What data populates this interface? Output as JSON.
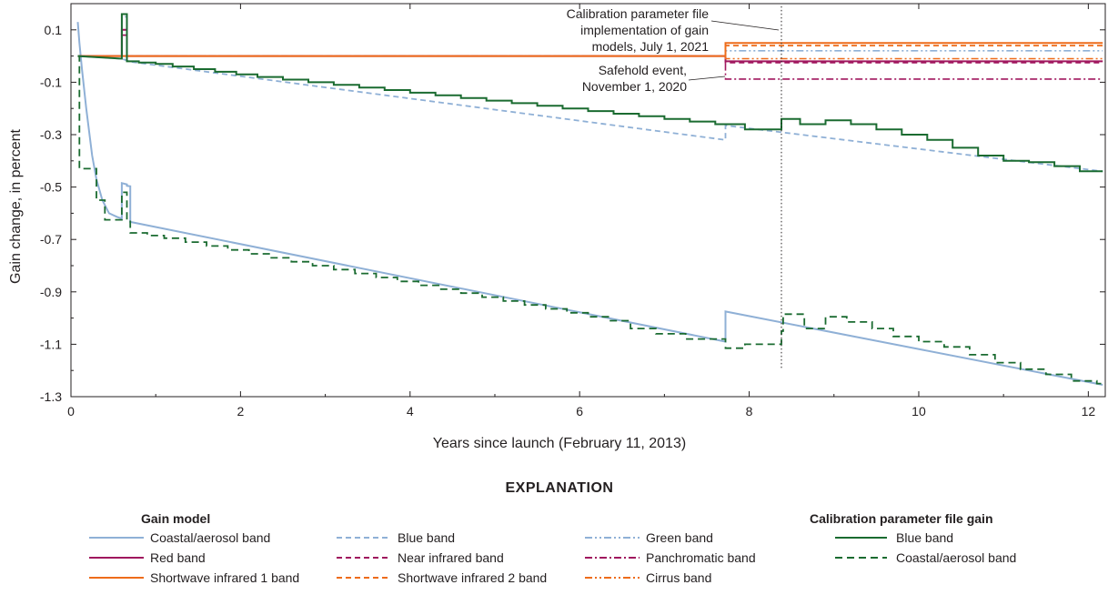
{
  "chart_data": {
    "type": "line",
    "xlabel": "Years since launch (February 11, 2013)",
    "ylabel": "Gain change, in percent",
    "xlim": [
      0,
      12.2
    ],
    "ylim": [
      -1.3,
      0.2
    ],
    "x_ticks": [
      0,
      2,
      4,
      6,
      8,
      10,
      12
    ],
    "x_tick_labels": [
      "0",
      "2",
      "4",
      "6",
      "8",
      "10",
      "12"
    ],
    "y_ticks": [
      0.1,
      -0.1,
      -0.3,
      -0.5,
      -0.7,
      -0.9,
      -1.1,
      -1.3
    ],
    "y_tick_labels": [
      "0.1",
      "-0.1",
      "-0.3",
      "-0.5",
      "-0.7",
      "-0.9",
      "-1.1",
      "-1.3"
    ],
    "annotations": [
      {
        "lines": [
          "Calibration parameter file",
          "implementation of gain",
          "models, July 1, 2021"
        ],
        "x": 8.38,
        "y": 0.1
      },
      {
        "lines": [
          "Safehold event,",
          "November 1, 2020"
        ],
        "x": 7.72,
        "y": -0.085
      }
    ],
    "vertical_marker": {
      "x": 8.38,
      "y_range": [
        0.19,
        -1.19
      ],
      "style": "dotted"
    },
    "series": [
      {
        "name": "Coastal/aerosol band",
        "group": "model",
        "color": "#8fb0d6",
        "dash": "solid",
        "width": 2,
        "points": [
          [
            0.08,
            0.13
          ],
          [
            0.1,
            0.05
          ],
          [
            0.13,
            -0.05
          ],
          [
            0.18,
            -0.2
          ],
          [
            0.25,
            -0.38
          ],
          [
            0.3,
            -0.47
          ],
          [
            0.37,
            -0.55
          ],
          [
            0.45,
            -0.6
          ],
          [
            0.55,
            -0.615
          ],
          [
            0.6,
            -0.62
          ],
          [
            0.6,
            -0.485
          ],
          [
            0.66,
            -0.49
          ],
          [
            0.66,
            -0.495
          ],
          [
            0.7,
            -0.497
          ],
          [
            0.7,
            -0.633
          ],
          [
            7.72,
            -1.09
          ],
          [
            7.72,
            -0.975
          ],
          [
            12.17,
            -1.255
          ]
        ]
      },
      {
        "name": "Blue band",
        "group": "model",
        "color": "#8fb0d6",
        "dash": "6,4",
        "width": 1.8,
        "points": [
          [
            0.08,
            0.0
          ],
          [
            0.6,
            -0.01
          ],
          [
            0.7,
            -0.022
          ],
          [
            7.72,
            -0.32
          ],
          [
            7.72,
            -0.265
          ],
          [
            12.17,
            -0.44
          ]
        ]
      },
      {
        "name": "Green band",
        "group": "model",
        "color": "#8fb0d6",
        "dash": "8,3,2,3,2,3",
        "width": 1.6,
        "points": [
          [
            0.08,
            0.0
          ],
          [
            0.6,
            0.0
          ],
          [
            0.6,
            0.15
          ],
          [
            0.66,
            0.15
          ],
          [
            0.66,
            0.0
          ],
          [
            7.72,
            0.0
          ],
          [
            7.72,
            0.02
          ],
          [
            12.17,
            0.02
          ]
        ]
      },
      {
        "name": "Red band",
        "group": "model",
        "color": "#a0175e",
        "dash": "solid",
        "width": 2,
        "points": [
          [
            0.08,
            0.0
          ],
          [
            0.6,
            0.0
          ],
          [
            0.6,
            0.1
          ],
          [
            0.66,
            0.1
          ],
          [
            0.66,
            0.0
          ],
          [
            7.72,
            0.0
          ],
          [
            7.72,
            -0.02
          ],
          [
            12.17,
            -0.02
          ]
        ]
      },
      {
        "name": "Near infrared band",
        "group": "model",
        "color": "#a0175e",
        "dash": "6,4",
        "width": 1.8,
        "points": [
          [
            0.08,
            0.0
          ],
          [
            0.6,
            0.0
          ],
          [
            0.6,
            0.08
          ],
          [
            0.66,
            0.08
          ],
          [
            0.66,
            0.0
          ],
          [
            7.72,
            0.0
          ],
          [
            7.72,
            -0.025
          ],
          [
            12.17,
            -0.025
          ]
        ]
      },
      {
        "name": "Panchromatic band",
        "group": "model",
        "color": "#a0175e",
        "dash": "8,3,2,3",
        "width": 1.6,
        "points": [
          [
            0.08,
            0.0
          ],
          [
            7.72,
            0.0
          ],
          [
            7.72,
            -0.088
          ],
          [
            12.17,
            -0.088
          ]
        ]
      },
      {
        "name": "Shortwave infrared 1 band",
        "group": "model",
        "color": "#ee6c1a",
        "dash": "solid",
        "width": 2,
        "points": [
          [
            0.08,
            0.0
          ],
          [
            7.72,
            0.0
          ],
          [
            7.72,
            0.05
          ],
          [
            12.17,
            0.05
          ]
        ]
      },
      {
        "name": "Shortwave infrared 2 band",
        "group": "model",
        "color": "#ee6c1a",
        "dash": "6,4",
        "width": 1.8,
        "points": [
          [
            7.72,
            0.0
          ],
          [
            7.72,
            0.04
          ],
          [
            12.17,
            0.04
          ]
        ]
      },
      {
        "name": "Cirrus band",
        "group": "model",
        "color": "#ee6c1a",
        "dash": "8,3,2,3,2,3",
        "width": 1.6,
        "points": [
          [
            7.72,
            0.0
          ],
          [
            7.72,
            -0.01
          ],
          [
            12.17,
            -0.01
          ]
        ]
      },
      {
        "name": "Blue band",
        "group": "cpf",
        "color": "#1a6b30",
        "dash": "solid",
        "width": 2,
        "points": [
          [
            0.08,
            0.0
          ],
          [
            0.6,
            -0.01
          ],
          [
            0.6,
            0.16
          ],
          [
            0.66,
            0.16
          ],
          [
            0.66,
            -0.02
          ],
          [
            0.8,
            -0.02
          ],
          [
            0.8,
            -0.025
          ],
          [
            1.0,
            -0.025
          ],
          [
            1.0,
            -0.03
          ],
          [
            1.2,
            -0.03
          ],
          [
            1.2,
            -0.04
          ],
          [
            1.45,
            -0.04
          ],
          [
            1.45,
            -0.05
          ],
          [
            1.7,
            -0.05
          ],
          [
            1.7,
            -0.06
          ],
          [
            1.95,
            -0.06
          ],
          [
            1.95,
            -0.07
          ],
          [
            2.2,
            -0.07
          ],
          [
            2.2,
            -0.08
          ],
          [
            2.5,
            -0.08
          ],
          [
            2.5,
            -0.09
          ],
          [
            2.8,
            -0.09
          ],
          [
            2.8,
            -0.1
          ],
          [
            3.1,
            -0.1
          ],
          [
            3.1,
            -0.11
          ],
          [
            3.4,
            -0.11
          ],
          [
            3.4,
            -0.12
          ],
          [
            3.7,
            -0.12
          ],
          [
            3.7,
            -0.13
          ],
          [
            4.0,
            -0.13
          ],
          [
            4.0,
            -0.14
          ],
          [
            4.3,
            -0.14
          ],
          [
            4.3,
            -0.15
          ],
          [
            4.6,
            -0.15
          ],
          [
            4.6,
            -0.16
          ],
          [
            4.9,
            -0.16
          ],
          [
            4.9,
            -0.17
          ],
          [
            5.2,
            -0.17
          ],
          [
            5.2,
            -0.18
          ],
          [
            5.5,
            -0.18
          ],
          [
            5.5,
            -0.19
          ],
          [
            5.8,
            -0.19
          ],
          [
            5.8,
            -0.2
          ],
          [
            6.1,
            -0.2
          ],
          [
            6.1,
            -0.21
          ],
          [
            6.4,
            -0.21
          ],
          [
            6.4,
            -0.22
          ],
          [
            6.7,
            -0.22
          ],
          [
            6.7,
            -0.23
          ],
          [
            7.0,
            -0.23
          ],
          [
            7.0,
            -0.24
          ],
          [
            7.3,
            -0.24
          ],
          [
            7.3,
            -0.25
          ],
          [
            7.6,
            -0.25
          ],
          [
            7.6,
            -0.26
          ],
          [
            7.95,
            -0.26
          ],
          [
            7.95,
            -0.28
          ],
          [
            8.38,
            -0.28
          ],
          [
            8.38,
            -0.24
          ],
          [
            8.6,
            -0.24
          ],
          [
            8.6,
            -0.26
          ],
          [
            8.9,
            -0.26
          ],
          [
            8.9,
            -0.245
          ],
          [
            9.2,
            -0.245
          ],
          [
            9.2,
            -0.26
          ],
          [
            9.5,
            -0.26
          ],
          [
            9.5,
            -0.28
          ],
          [
            9.8,
            -0.28
          ],
          [
            9.8,
            -0.3
          ],
          [
            10.1,
            -0.3
          ],
          [
            10.1,
            -0.32
          ],
          [
            10.4,
            -0.32
          ],
          [
            10.4,
            -0.35
          ],
          [
            10.7,
            -0.35
          ],
          [
            10.7,
            -0.38
          ],
          [
            11.0,
            -0.38
          ],
          [
            11.0,
            -0.4
          ],
          [
            11.3,
            -0.4
          ],
          [
            11.3,
            -0.405
          ],
          [
            11.6,
            -0.405
          ],
          [
            11.6,
            -0.42
          ],
          [
            11.9,
            -0.42
          ],
          [
            11.9,
            -0.44
          ],
          [
            12.17,
            -0.44
          ]
        ]
      },
      {
        "name": "Coastal/aerosol band",
        "group": "cpf",
        "color": "#1a6b30",
        "dash": "8,5",
        "width": 1.8,
        "points": [
          [
            0.08,
            0.0
          ],
          [
            0.1,
            0.0
          ],
          [
            0.1,
            -0.43
          ],
          [
            0.3,
            -0.43
          ],
          [
            0.3,
            -0.55
          ],
          [
            0.4,
            -0.55
          ],
          [
            0.4,
            -0.625
          ],
          [
            0.6,
            -0.625
          ],
          [
            0.6,
            -0.52
          ],
          [
            0.66,
            -0.52
          ],
          [
            0.66,
            -0.625
          ],
          [
            0.7,
            -0.625
          ],
          [
            0.7,
            -0.675
          ],
          [
            0.9,
            -0.675
          ],
          [
            0.9,
            -0.685
          ],
          [
            1.1,
            -0.685
          ],
          [
            1.1,
            -0.695
          ],
          [
            1.35,
            -0.695
          ],
          [
            1.35,
            -0.71
          ],
          [
            1.6,
            -0.71
          ],
          [
            1.6,
            -0.725
          ],
          [
            1.85,
            -0.725
          ],
          [
            1.85,
            -0.74
          ],
          [
            2.1,
            -0.74
          ],
          [
            2.1,
            -0.755
          ],
          [
            2.35,
            -0.755
          ],
          [
            2.35,
            -0.77
          ],
          [
            2.6,
            -0.77
          ],
          [
            2.6,
            -0.785
          ],
          [
            2.85,
            -0.785
          ],
          [
            2.85,
            -0.8
          ],
          [
            3.1,
            -0.8
          ],
          [
            3.1,
            -0.815
          ],
          [
            3.35,
            -0.815
          ],
          [
            3.35,
            -0.83
          ],
          [
            3.6,
            -0.83
          ],
          [
            3.6,
            -0.845
          ],
          [
            3.85,
            -0.845
          ],
          [
            3.85,
            -0.86
          ],
          [
            4.1,
            -0.86
          ],
          [
            4.1,
            -0.875
          ],
          [
            4.35,
            -0.875
          ],
          [
            4.35,
            -0.89
          ],
          [
            4.6,
            -0.89
          ],
          [
            4.6,
            -0.905
          ],
          [
            4.85,
            -0.905
          ],
          [
            4.85,
            -0.92
          ],
          [
            5.1,
            -0.92
          ],
          [
            5.1,
            -0.935
          ],
          [
            5.35,
            -0.935
          ],
          [
            5.35,
            -0.95
          ],
          [
            5.6,
            -0.95
          ],
          [
            5.6,
            -0.965
          ],
          [
            5.85,
            -0.965
          ],
          [
            5.85,
            -0.98
          ],
          [
            6.1,
            -0.98
          ],
          [
            6.1,
            -0.995
          ],
          [
            6.35,
            -0.995
          ],
          [
            6.35,
            -1.01
          ],
          [
            6.6,
            -1.01
          ],
          [
            6.6,
            -1.04
          ],
          [
            6.9,
            -1.04
          ],
          [
            6.9,
            -1.06
          ],
          [
            7.25,
            -1.06
          ],
          [
            7.25,
            -1.08
          ],
          [
            7.72,
            -1.08
          ],
          [
            7.72,
            -1.115
          ],
          [
            7.95,
            -1.115
          ],
          [
            7.95,
            -1.1
          ],
          [
            8.38,
            -1.1
          ],
          [
            8.38,
            -1.05
          ],
          [
            8.4,
            -1.05
          ],
          [
            8.4,
            -0.985
          ],
          [
            8.65,
            -0.985
          ],
          [
            8.65,
            -1.04
          ],
          [
            8.9,
            -1.04
          ],
          [
            8.9,
            -0.995
          ],
          [
            9.15,
            -0.995
          ],
          [
            9.15,
            -1.015
          ],
          [
            9.45,
            -1.015
          ],
          [
            9.45,
            -1.04
          ],
          [
            9.7,
            -1.04
          ],
          [
            9.7,
            -1.07
          ],
          [
            10.0,
            -1.07
          ],
          [
            10.0,
            -1.09
          ],
          [
            10.3,
            -1.09
          ],
          [
            10.3,
            -1.11
          ],
          [
            10.6,
            -1.11
          ],
          [
            10.6,
            -1.14
          ],
          [
            10.9,
            -1.14
          ],
          [
            10.9,
            -1.17
          ],
          [
            11.2,
            -1.17
          ],
          [
            11.2,
            -1.195
          ],
          [
            11.5,
            -1.195
          ],
          [
            11.5,
            -1.215
          ],
          [
            11.8,
            -1.215
          ],
          [
            11.8,
            -1.24
          ],
          [
            12.1,
            -1.24
          ],
          [
            12.1,
            -1.25
          ],
          [
            12.17,
            -1.25
          ]
        ]
      }
    ]
  },
  "legend": {
    "title": "EXPLANATION",
    "gain_model_header": "Gain model",
    "cpf_header": "Calibration parameter file gain",
    "gain_model_items": [
      {
        "label": "Coastal/aerosol band",
        "color": "#8fb0d6",
        "dash": "solid"
      },
      {
        "label": "Blue band",
        "color": "#8fb0d6",
        "dash": "6,4"
      },
      {
        "label": "Green band",
        "color": "#8fb0d6",
        "dash": "8,3,2,3,2,3"
      },
      {
        "label": "Red band",
        "color": "#a0175e",
        "dash": "solid"
      },
      {
        "label": "Near infrared band",
        "color": "#a0175e",
        "dash": "6,4"
      },
      {
        "label": "Panchromatic band",
        "color": "#a0175e",
        "dash": "8,3,2,3"
      },
      {
        "label": "Shortwave infrared 1 band",
        "color": "#ee6c1a",
        "dash": "solid"
      },
      {
        "label": "Shortwave infrared 2 band",
        "color": "#ee6c1a",
        "dash": "6,4"
      },
      {
        "label": "Cirrus band",
        "color": "#ee6c1a",
        "dash": "8,3,2,3,2,3"
      }
    ],
    "cpf_items": [
      {
        "label": "Blue band",
        "color": "#1a6b30",
        "dash": "solid"
      },
      {
        "label": "Coastal/aerosol band",
        "color": "#1a6b30",
        "dash": "8,5"
      }
    ]
  }
}
